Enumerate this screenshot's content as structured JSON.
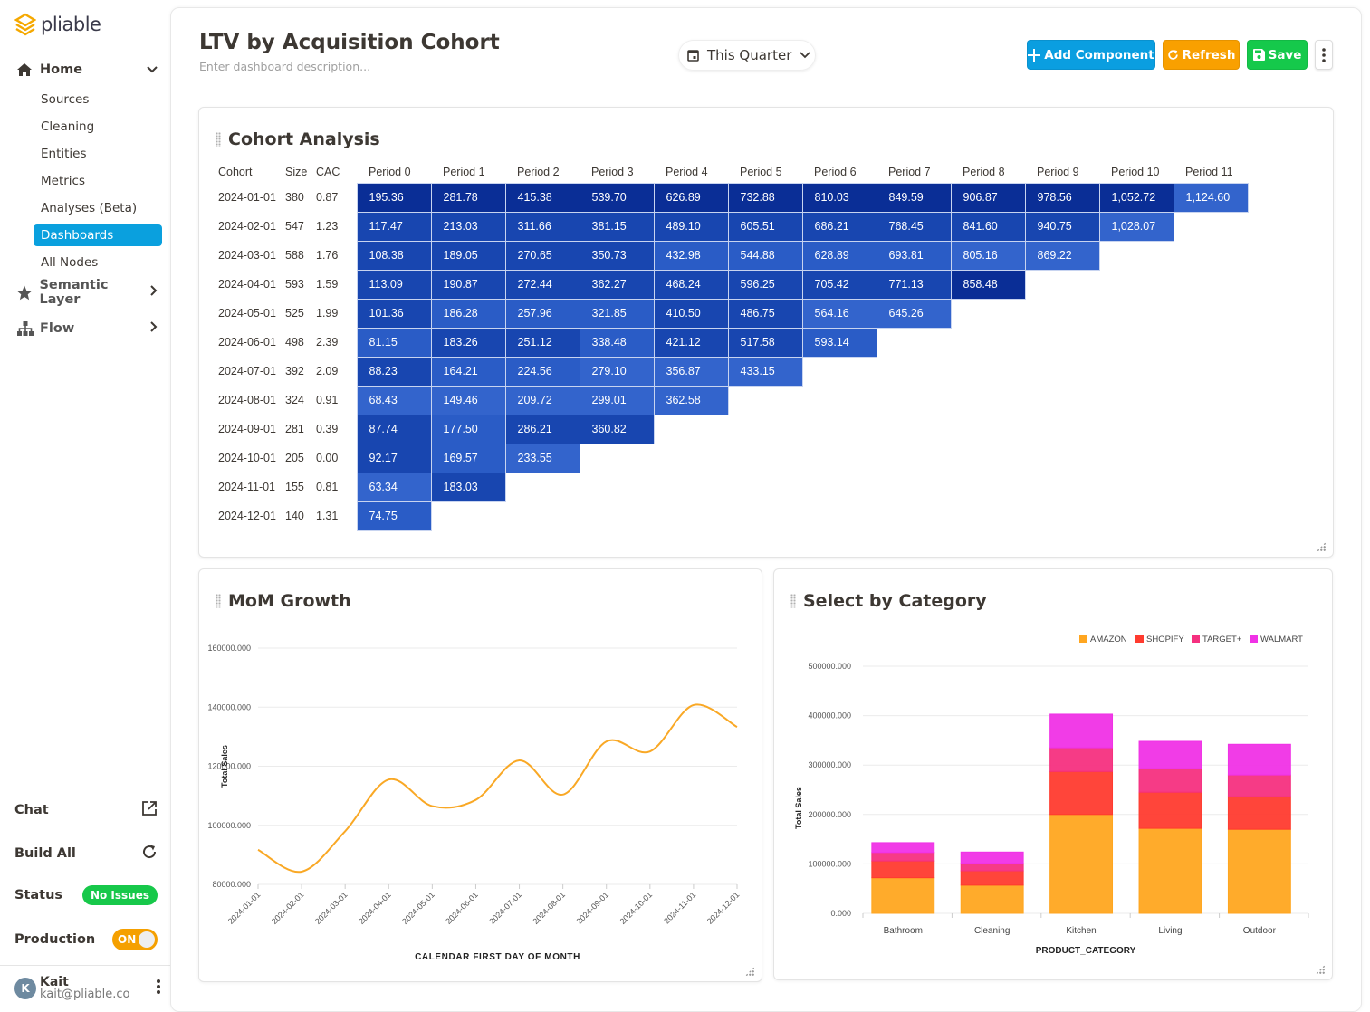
{
  "app": {
    "logo_text": "pliable"
  },
  "sidebar": {
    "home": "Home",
    "sub_items": [
      {
        "label": "Sources",
        "active": false
      },
      {
        "label": "Cleaning",
        "active": false
      },
      {
        "label": "Entities",
        "active": false
      },
      {
        "label": "Metrics",
        "active": false
      },
      {
        "label": "Analyses (Beta)",
        "active": false
      },
      {
        "label": "Dashboards",
        "active": true
      },
      {
        "label": "All Nodes",
        "active": false
      }
    ],
    "semantic_layer": "Semantic Layer",
    "flow": "Flow",
    "chat": "Chat",
    "build_all": "Build All",
    "status_label": "Status",
    "status_value": "No Issues",
    "production_label": "Production",
    "production_toggle": "ON",
    "user": {
      "initial": "K",
      "name": "Kait",
      "email": "kait@pliable.co"
    }
  },
  "header": {
    "title": "LTV by Acquisition Cohort",
    "description_placeholder": "Enter dashboard description...",
    "date_range": "This Quarter",
    "add_component": "Add Component",
    "refresh": "Refresh",
    "save": "Save"
  },
  "cohort": {
    "title": "Cohort Analysis",
    "headers": [
      "Cohort",
      "Size",
      "CAC",
      "Period 0",
      "Period 1",
      "Period 2",
      "Period 3",
      "Period 4",
      "Period 5",
      "Period 6",
      "Period 7",
      "Period 8",
      "Period 9",
      "Period 10",
      "Period 11"
    ],
    "rows": [
      {
        "cohort": "2024-01-01",
        "size": "380",
        "cac": "0.87",
        "values": [
          "195.36",
          "281.78",
          "415.38",
          "539.70",
          "626.89",
          "732.88",
          "810.03",
          "849.59",
          "906.87",
          "978.56",
          "1,052.72",
          "1,124.60"
        ],
        "shade": [
          0,
          0,
          0,
          0,
          0,
          0,
          0,
          0,
          0,
          0,
          0,
          3
        ]
      },
      {
        "cohort": "2024-02-01",
        "size": "547",
        "cac": "1.23",
        "values": [
          "117.47",
          "213.03",
          "311.66",
          "381.15",
          "489.10",
          "605.51",
          "686.21",
          "768.45",
          "841.60",
          "940.75",
          "1,028.07"
        ],
        "shade": [
          1,
          1,
          1,
          1,
          1,
          1,
          1,
          1,
          1,
          1,
          3
        ]
      },
      {
        "cohort": "2024-03-01",
        "size": "588",
        "cac": "1.76",
        "values": [
          "108.38",
          "189.05",
          "270.65",
          "350.73",
          "432.98",
          "544.88",
          "628.89",
          "693.81",
          "805.16",
          "869.22"
        ],
        "shade": [
          1,
          1,
          1,
          1,
          2,
          2,
          2,
          2,
          3,
          3
        ]
      },
      {
        "cohort": "2024-04-01",
        "size": "593",
        "cac": "1.59",
        "values": [
          "113.09",
          "190.87",
          "272.44",
          "362.27",
          "468.24",
          "596.25",
          "705.42",
          "771.13",
          "858.48"
        ],
        "shade": [
          1,
          1,
          1,
          1,
          1,
          1,
          1,
          1,
          0
        ]
      },
      {
        "cohort": "2024-05-01",
        "size": "525",
        "cac": "1.99",
        "values": [
          "101.36",
          "186.28",
          "257.96",
          "321.85",
          "410.50",
          "486.75",
          "564.16",
          "645.26"
        ],
        "shade": [
          1,
          2,
          2,
          2,
          1,
          1,
          3,
          3
        ]
      },
      {
        "cohort": "2024-06-01",
        "size": "498",
        "cac": "2.39",
        "values": [
          "81.15",
          "183.26",
          "251.12",
          "338.48",
          "421.12",
          "517.58",
          "593.14"
        ],
        "shade": [
          2,
          1,
          1,
          2,
          1,
          1,
          2
        ]
      },
      {
        "cohort": "2024-07-01",
        "size": "392",
        "cac": "2.09",
        "values": [
          "88.23",
          "164.21",
          "224.56",
          "279.10",
          "356.87",
          "433.15"
        ],
        "shade": [
          1,
          2,
          2,
          3,
          3,
          3
        ]
      },
      {
        "cohort": "2024-08-01",
        "size": "324",
        "cac": "0.91",
        "values": [
          "68.43",
          "149.46",
          "209.72",
          "299.01",
          "362.58"
        ],
        "shade": [
          3,
          3,
          3,
          3,
          3
        ]
      },
      {
        "cohort": "2024-09-01",
        "size": "281",
        "cac": "0.39",
        "values": [
          "87.74",
          "177.50",
          "286.21",
          "360.82"
        ],
        "shade": [
          1,
          2,
          1,
          1
        ]
      },
      {
        "cohort": "2024-10-01",
        "size": "205",
        "cac": "0.00",
        "values": [
          "92.17",
          "169.57",
          "233.55"
        ],
        "shade": [
          1,
          2,
          3
        ]
      },
      {
        "cohort": "2024-11-01",
        "size": "155",
        "cac": "0.81",
        "values": [
          "63.34",
          "183.03"
        ],
        "shade": [
          3,
          1
        ]
      },
      {
        "cohort": "2024-12-01",
        "size": "140",
        "cac": "1.31",
        "values": [
          "74.75"
        ],
        "shade": [
          2
        ]
      }
    ]
  },
  "chart_data": [
    {
      "id": "mom",
      "type": "line",
      "title": "MoM Growth",
      "xlabel": "CALENDAR FIRST DAY OF MONTH",
      "ylabel": "Total Sales",
      "ylim": [
        80000,
        160000
      ],
      "yticks": [
        "80000.000",
        "100000.000",
        "120000.000",
        "140000.000",
        "160000.000"
      ],
      "ytick_values": [
        80000,
        100000,
        120000,
        140000,
        160000
      ],
      "x": [
        "2024-01-01",
        "2024-02-01",
        "2024-03-01",
        "2024-04-01",
        "2024-05-01",
        "2024-06-01",
        "2024-07-01",
        "2024-08-01",
        "2024-09-01",
        "2024-10-01",
        "2024-11-01",
        "2024-12-01"
      ],
      "values": [
        91700,
        84300,
        98000,
        115500,
        106500,
        108600,
        122000,
        110400,
        128400,
        125000,
        140700,
        133300
      ],
      "color": "#f9a825",
      "grid": true
    },
    {
      "id": "category",
      "type": "bar",
      "stacked": true,
      "title": "Select by Category",
      "xlabel": "PRODUCT_CATEGORY",
      "ylabel": "Total Sales",
      "ylim": [
        0,
        500000
      ],
      "yticks": [
        "0.000",
        "100000.000",
        "200000.000",
        "300000.000",
        "400000.000",
        "500000.000"
      ],
      "ytick_values": [
        0,
        100000,
        200000,
        300000,
        400000,
        500000
      ],
      "categories": [
        "Bathroom",
        "Cleaning",
        "Kitchen",
        "Living",
        "Outdoor"
      ],
      "legend_position": "top-right",
      "series": [
        {
          "name": "AMAZON",
          "color": "#ffa620",
          "values": [
            72000,
            57000,
            200000,
            172000,
            170000
          ]
        },
        {
          "name": "SHOPIFY",
          "color": "#ff3b2f",
          "values": [
            34000,
            29000,
            87000,
            73000,
            66000
          ]
        },
        {
          "name": "TARGET+",
          "color": "#f5307f",
          "values": [
            17000,
            15000,
            48000,
            48000,
            44000
          ]
        },
        {
          "name": "WALMART",
          "color": "#f032e6",
          "values": [
            20000,
            23000,
            68000,
            55000,
            62000
          ]
        }
      ],
      "grid": true
    }
  ]
}
